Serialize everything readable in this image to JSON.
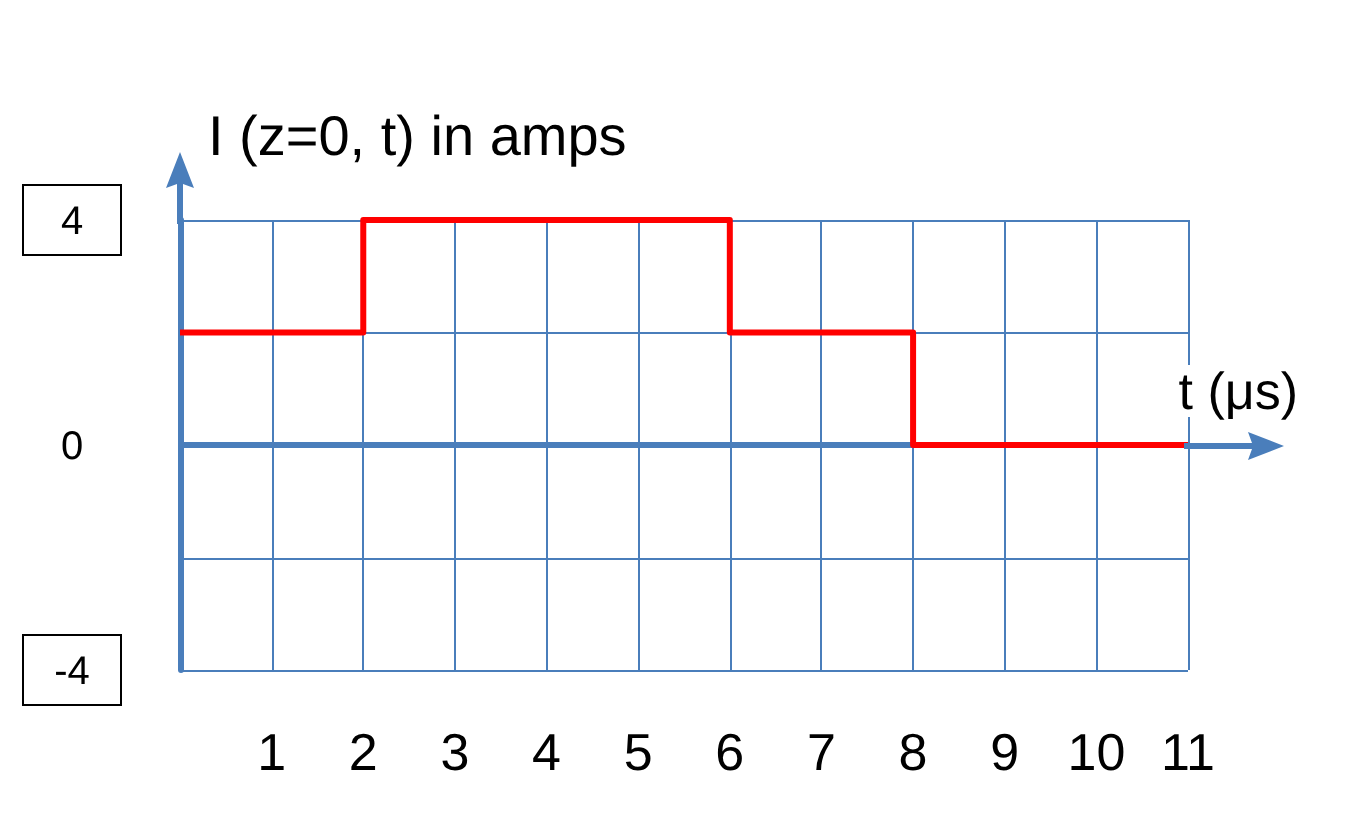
{
  "chart_data": {
    "type": "step",
    "ylabel": "I (z=0, t) in amps",
    "xlabel": "t (μs)",
    "x": [
      0,
      2,
      6,
      8,
      11
    ],
    "series": [
      {
        "color": "#ff0000",
        "values": [
          2,
          4,
          2,
          0,
          0
        ]
      }
    ],
    "xlim": [
      0,
      11
    ],
    "xticks": [
      {
        "value": 0,
        "label": null
      },
      1,
      2,
      3,
      4,
      5,
      6,
      7,
      8,
      9,
      10,
      11
    ],
    "ylim": [
      -4,
      4
    ],
    "yticks": [
      -4,
      {
        "value": -2,
        "label": null
      },
      0,
      {
        "value": 2,
        "label": null
      },
      4
    ],
    "ref_lines": [
      {
        "axis": "y",
        "value": 0,
        "color": "#4a7ebb"
      }
    ],
    "grid": true,
    "marker": "none",
    "line_style": "solid"
  }
}
